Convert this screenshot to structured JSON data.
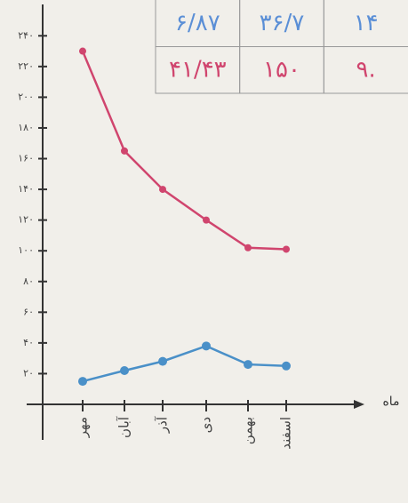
{
  "table": {
    "rows": [
      [
        "۶/۸۷",
        "۳۶/۷",
        "۱۴"
      ],
      [
        "۴۱/۴۳",
        "۱۵۰",
        "۹."
      ]
    ],
    "row_colors": [
      "#5b8fd6",
      "#d0456e"
    ]
  },
  "chart_data": {
    "type": "line",
    "x_label": "ماه",
    "categories": [
      "مهر",
      "آبان",
      "آذر",
      "دی",
      "بهمن",
      "اسفند"
    ],
    "series": [
      {
        "color": "#d0456e",
        "values": [
          230,
          165,
          140,
          120,
          102,
          101
        ]
      },
      {
        "color": "#4a90c8",
        "values": [
          15,
          22,
          28,
          38,
          26,
          25
        ]
      }
    ],
    "ylim": [
      0,
      250
    ],
    "yticks": [
      {
        "value": 20,
        "label": "۲۰"
      },
      {
        "value": 40,
        "label": "۴۰"
      },
      {
        "value": 60,
        "label": "۶۰"
      },
      {
        "value": 80,
        "label": "۸۰"
      },
      {
        "value": 100,
        "label": "۱۰۰"
      },
      {
        "value": 120,
        "label": "۱۲۰"
      },
      {
        "value": 140,
        "label": "۱۴۰"
      },
      {
        "value": 160,
        "label": "۱۶۰"
      },
      {
        "value": 180,
        "label": "۱۸۰"
      },
      {
        "value": 200,
        "label": "۲۰۰"
      },
      {
        "value": 220,
        "label": "۲۲۰"
      },
      {
        "value": 240,
        "label": "۲۴۰"
      }
    ]
  }
}
